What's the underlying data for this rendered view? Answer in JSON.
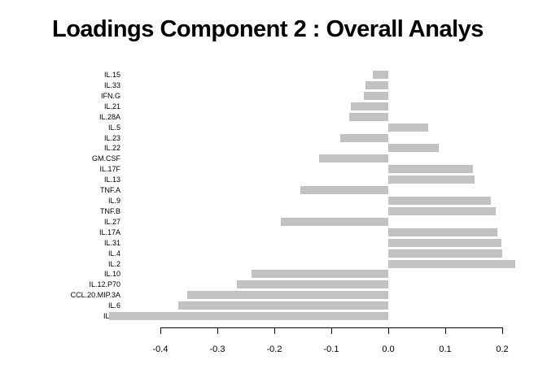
{
  "title": "Loadings Component 2 : Overall Analys",
  "chart_data": {
    "type": "bar",
    "orientation": "horizontal",
    "title": "Loadings Component 2 : Overall Analys",
    "categories": [
      "IL.15",
      "IL.33",
      "IFN.G",
      "IL.21",
      "IL.28A",
      "IL.5",
      "IL.23",
      "IL.22",
      "GM.CSF",
      "IL.17F",
      "IL.13",
      "TNF.A",
      "IL.9",
      "TNF.B",
      "IL.27",
      "IL.17A",
      "IL.31",
      "IL.4",
      "IL.2",
      "IL.10",
      "IL.12.P70",
      "CCL.20.MIP.3A",
      "IL.6",
      "IL.1B"
    ],
    "values": [
      -0.027,
      -0.04,
      -0.043,
      -0.066,
      -0.068,
      0.07,
      -0.084,
      0.089,
      -0.121,
      0.149,
      0.152,
      -0.155,
      0.18,
      0.189,
      -0.189,
      0.191,
      0.198,
      0.2,
      0.223,
      -0.24,
      -0.266,
      -0.353,
      -0.369,
      -0.49
    ],
    "xlabel": "",
    "ylabel": "",
    "xlim": [
      -0.49,
      0.23
    ],
    "x_ticks": [
      -0.4,
      -0.3,
      -0.2,
      -0.1,
      0.0,
      0.1,
      0.2
    ],
    "x_tick_labels": [
      "-0.4",
      "-0.3",
      "-0.2",
      "-0.1",
      "0.0",
      "0.1",
      "0.2"
    ],
    "bar_color": "#c2c2c2",
    "grid": false,
    "legend": false
  }
}
